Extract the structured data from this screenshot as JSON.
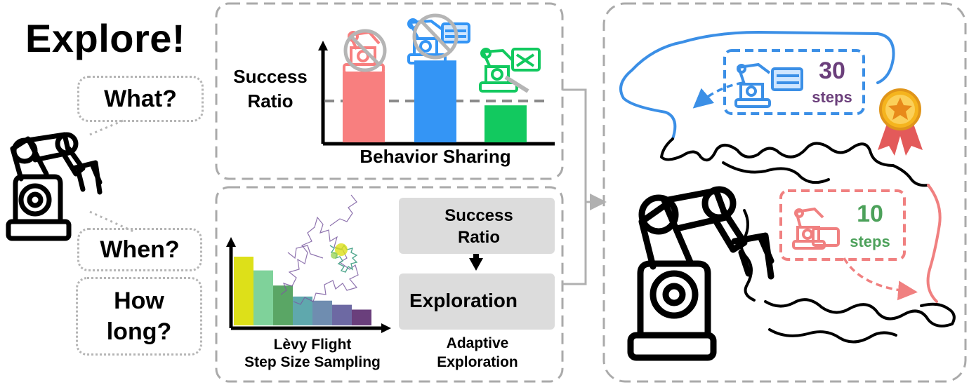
{
  "title": "Explore!",
  "questions": [
    "What?",
    "When?",
    "How long?"
  ],
  "behavior_sharing": {
    "ylabel": "Success Ratio",
    "xlabel": "Behavior Sharing",
    "bar_colors": [
      "#f87f7f",
      "#3495f5",
      "#12c95f"
    ],
    "bar_values": [
      0.63,
      0.73,
      0.33
    ],
    "threshold": 0.52
  },
  "levy": {
    "label_line1": "Lèvy Flight",
    "label_line2": "Step Size Sampling",
    "bar_colors": [
      "#dde019",
      "#7fd29a",
      "#5aa665",
      "#5fa8ad",
      "#6f8db0",
      "#6d69a3",
      "#6a3f7c"
    ],
    "bar_values": [
      1.0,
      0.8,
      0.58,
      0.42,
      0.36,
      0.3,
      0.23
    ]
  },
  "adaptive": {
    "success_label": "Success Ratio",
    "exploration_label": "Exploration",
    "caption_line1": "Adaptive",
    "caption_line2": "Exploration"
  },
  "result": {
    "blue_steps": "30",
    "blue_steps_word": "steps",
    "red_steps": "10",
    "red_steps_word": "steps",
    "colors": {
      "blue": "#3b8fe6",
      "red": "#f08080",
      "purple": "#6b3f7b",
      "green": "#4ca15a"
    }
  }
}
